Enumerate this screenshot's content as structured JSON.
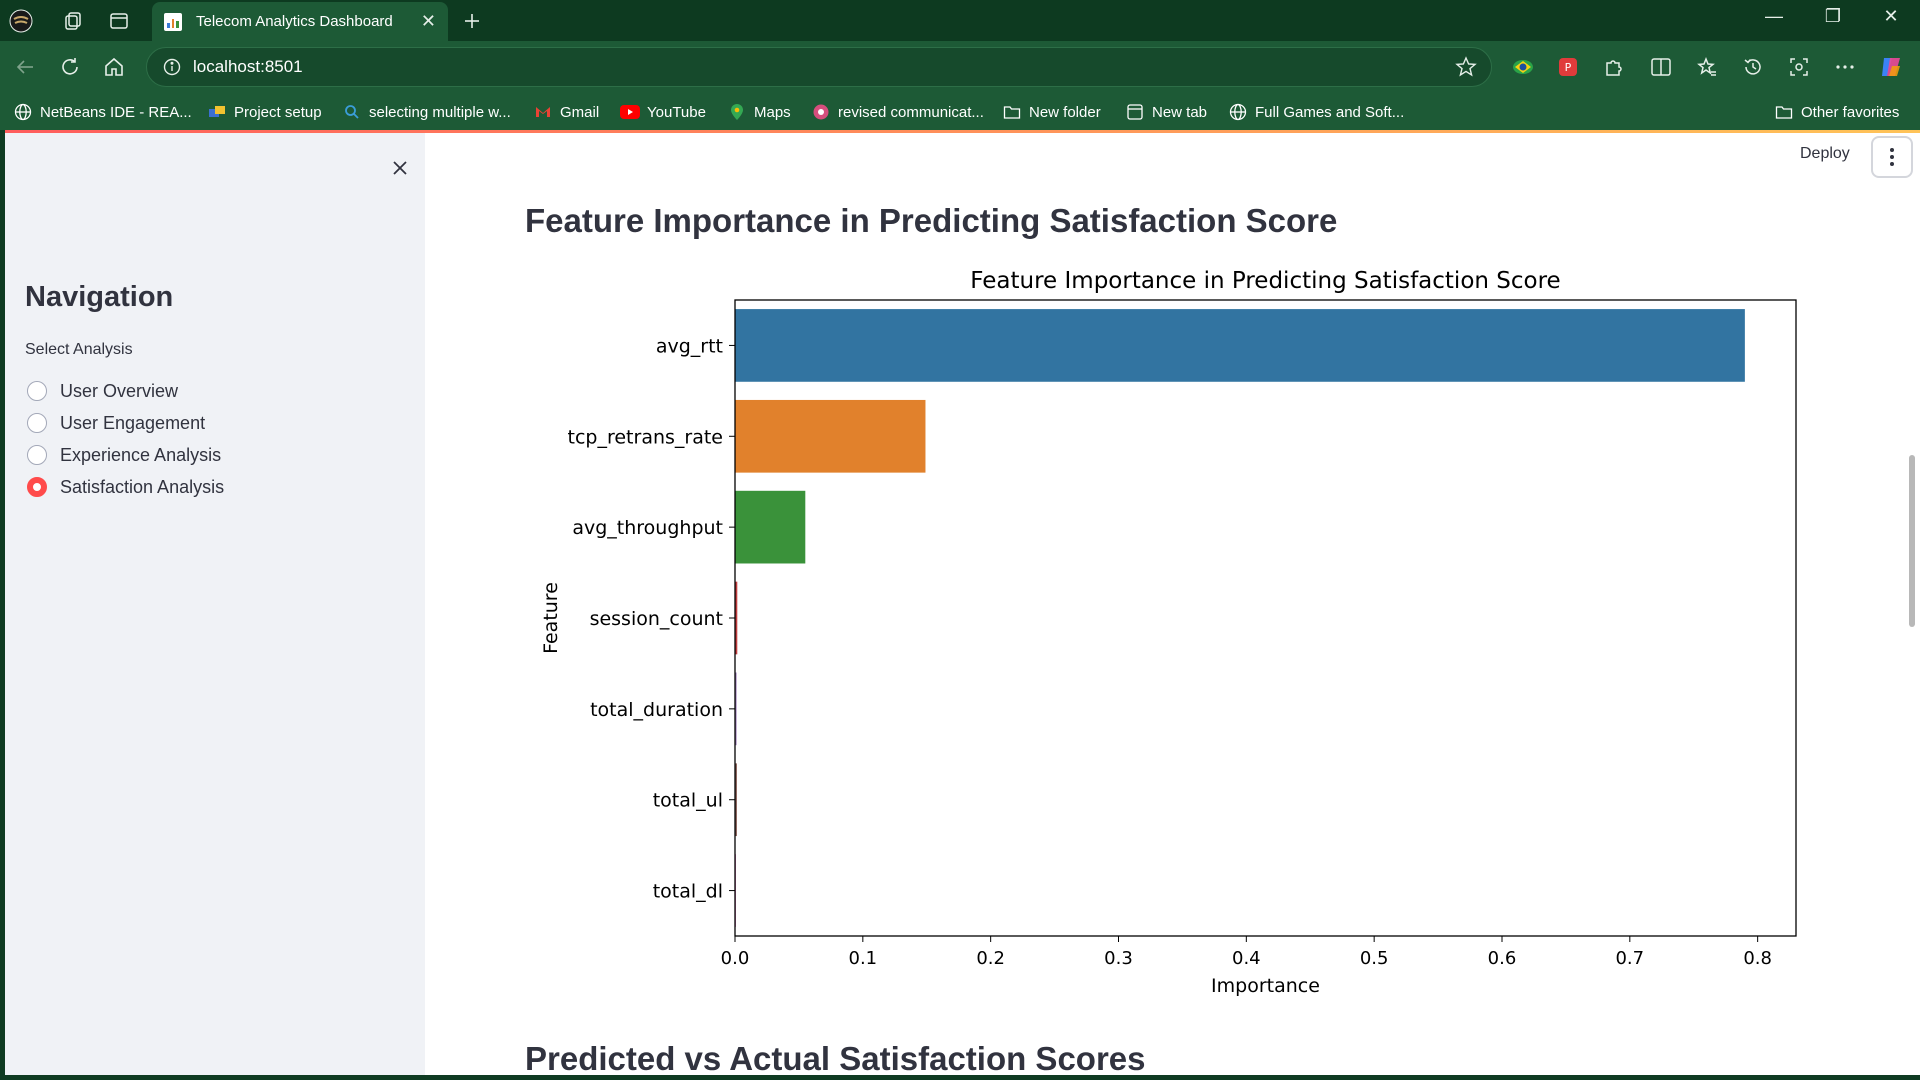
{
  "browser": {
    "tab_title": "Telecom Analytics Dashboard",
    "url": "localhost:8501",
    "bookmarks": [
      {
        "label": "NetBeans IDE - REA...",
        "icon": "globe-icon"
      },
      {
        "label": "Project setup",
        "icon": "terminal-icon"
      },
      {
        "label": "selecting multiple w...",
        "icon": "search-icon"
      },
      {
        "label": "Gmail",
        "icon": "gmail-icon"
      },
      {
        "label": "YouTube",
        "icon": "youtube-icon"
      },
      {
        "label": "Maps",
        "icon": "maps-pin-icon"
      },
      {
        "label": "revised communicat...",
        "icon": "document-icon"
      },
      {
        "label": "New folder",
        "icon": "folder-icon"
      },
      {
        "label": "New tab",
        "icon": "new-tab-icon"
      },
      {
        "label": "Full Games and Soft...",
        "icon": "globe-icon"
      }
    ],
    "other_favorites": "Other favorites"
  },
  "app": {
    "deploy_label": "Deploy",
    "sidebar": {
      "title": "Navigation",
      "select_label": "Select Analysis",
      "options": [
        {
          "label": "User Overview",
          "selected": false
        },
        {
          "label": "User Engagement",
          "selected": false
        },
        {
          "label": "Experience Analysis",
          "selected": false
        },
        {
          "label": "Satisfaction Analysis",
          "selected": true
        }
      ]
    },
    "section_title": "Feature Importance in Predicting Satisfaction Score",
    "next_section_title": "Predicted vs Actual Satisfaction Scores"
  },
  "colors": {
    "accent": "#ff4b4b",
    "bar_colors": [
      "#3274a1",
      "#e1812c",
      "#3a923a",
      "#c03d3e",
      "#9372b2",
      "#845b53",
      "#d684bd"
    ]
  },
  "chart_data": {
    "type": "bar",
    "orientation": "horizontal",
    "title": "Feature Importance in Predicting Satisfaction Score",
    "xlabel": "Importance",
    "ylabel": "Feature",
    "categories": [
      "avg_rtt",
      "tcp_retrans_rate",
      "avg_throughput",
      "session_count",
      "total_duration",
      "total_ul",
      "total_dl"
    ],
    "values": [
      0.79,
      0.149,
      0.055,
      0.0018,
      0.0012,
      0.0015,
      0.0004
    ],
    "xlim": [
      0,
      0.83
    ],
    "xticks": [
      0.0,
      0.1,
      0.2,
      0.3,
      0.4,
      0.5,
      0.6,
      0.7,
      0.8
    ],
    "xtick_labels": [
      "0.0",
      "0.1",
      "0.2",
      "0.3",
      "0.4",
      "0.5",
      "0.6",
      "0.7",
      "0.8"
    ],
    "grid": false
  }
}
